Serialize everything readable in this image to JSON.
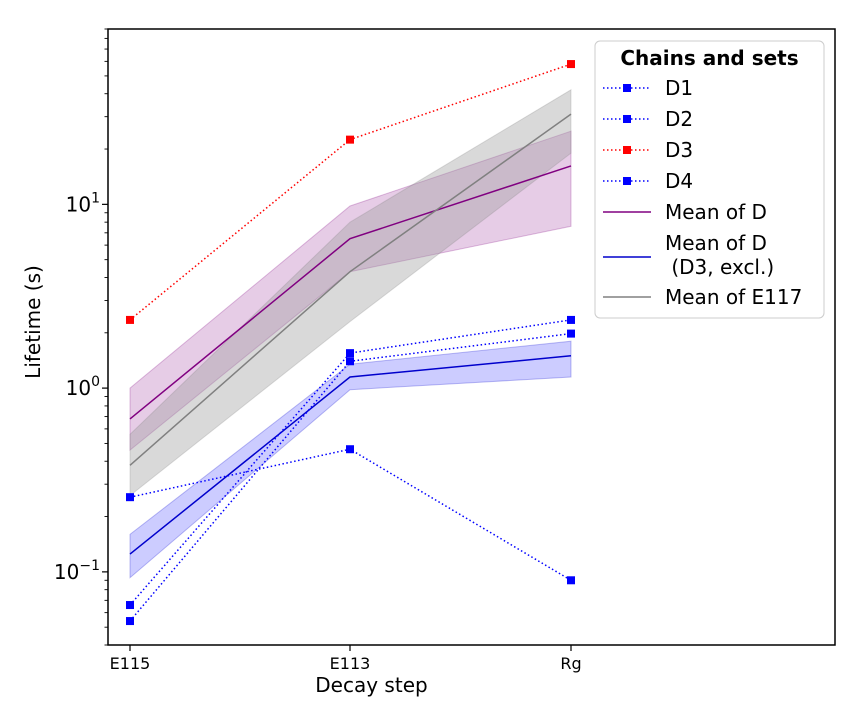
{
  "chart_data": {
    "type": "line",
    "title": "",
    "xlabel": "Decay step",
    "ylabel": "Lifetime (s)",
    "yscale": "log",
    "ylim": [
      0.04,
      90
    ],
    "categories": [
      "E115",
      "E113",
      "Rg"
    ],
    "y_ticks": [
      {
        "value": 0.1,
        "base": "10",
        "exp": "−1"
      },
      {
        "value": 1,
        "base": "10",
        "exp": "0"
      },
      {
        "value": 10,
        "base": "10",
        "exp": "1"
      }
    ],
    "grid": false,
    "legend": {
      "title": "Chains and sets",
      "placement": "top-right"
    },
    "series": [
      {
        "name": "D1",
        "style": "dotted-marker",
        "color": "#0000ff",
        "values": [
          0.066,
          1.55,
          2.35
        ]
      },
      {
        "name": "D2",
        "style": "dotted-marker",
        "color": "#0000ff",
        "values": [
          0.054,
          1.4,
          1.98
        ]
      },
      {
        "name": "D3",
        "style": "dotted-marker",
        "color": "#ff0000",
        "values": [
          2.35,
          22.5,
          58
        ]
      },
      {
        "name": "D4",
        "style": "dotted-marker",
        "color": "#0000ff",
        "values": [
          0.255,
          0.465,
          0.09
        ]
      }
    ],
    "bands": [
      {
        "name": "Mean of D",
        "color": "#800080",
        "fill": "#c080c0",
        "mean": [
          0.68,
          6.5,
          16.2
        ],
        "lower": [
          0.46,
          4.3,
          7.6
        ],
        "upper": [
          1.0,
          9.8,
          25
        ]
      },
      {
        "name": "Mean of D\n (D3, excl.)",
        "color": "#0000cc",
        "fill": "#7f7fff",
        "mean": [
          0.125,
          1.15,
          1.5
        ],
        "lower": [
          0.093,
          0.98,
          1.15
        ],
        "upper": [
          0.16,
          1.35,
          1.8
        ]
      },
      {
        "name": "Mean of E117",
        "color": "#808080",
        "fill": "#a0a0a0",
        "mean": [
          0.38,
          4.3,
          31
        ],
        "lower": [
          0.26,
          2.3,
          19
        ],
        "upper": [
          0.56,
          8.0,
          42
        ]
      }
    ]
  }
}
